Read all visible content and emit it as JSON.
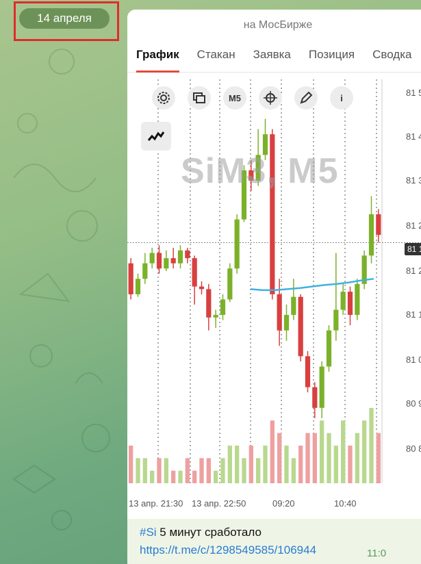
{
  "date_pill": "14 апреля",
  "screenshot": {
    "subtitle": "на МосБирже",
    "tabs": [
      "График",
      "Стакан",
      "Заявка",
      "Позиция",
      "Сводка"
    ],
    "active_tab": 0,
    "tools": {
      "timeframe": "M5",
      "info": "i"
    },
    "watermark": "SiM3, M5",
    "x_labels": [
      "13 апр. 21:30",
      "13 апр. 22:50",
      "09:20",
      "10:40"
    ],
    "y_labels": [
      "81 5",
      "81 4",
      "81 3",
      "81 2",
      "81 2",
      "81 1",
      "81 0",
      "80 9",
      "80 8"
    ],
    "price_tag": "81 1"
  },
  "message": {
    "hashtag": "#Si",
    "text": " 5 минут сработало",
    "link": "https://t.me/c/1298549585/106944",
    "time": "11:0"
  },
  "chart_data": {
    "type": "candlestick",
    "title": "SiM3, M5",
    "x_ticks": [
      "13 апр. 21:30",
      "13 апр. 22:50",
      "09:20",
      "10:40"
    ],
    "candles": [
      {
        "o": 81160,
        "c": 81100,
        "h": 81170,
        "l": 81090
      },
      {
        "o": 81100,
        "c": 81130,
        "h": 81140,
        "l": 81095
      },
      {
        "o": 81130,
        "c": 81160,
        "h": 81180,
        "l": 81120
      },
      {
        "o": 81160,
        "c": 81180,
        "h": 81190,
        "l": 81150
      },
      {
        "o": 81180,
        "c": 81150,
        "h": 81195,
        "l": 81140
      },
      {
        "o": 81150,
        "c": 81170,
        "h": 81185,
        "l": 81145
      },
      {
        "o": 81170,
        "c": 81160,
        "h": 81190,
        "l": 81150
      },
      {
        "o": 81160,
        "c": 81185,
        "h": 81195,
        "l": 81150
      },
      {
        "o": 81185,
        "c": 81170,
        "h": 81190,
        "l": 81160
      },
      {
        "o": 81170,
        "c": 81115,
        "h": 81175,
        "l": 81080
      },
      {
        "o": 81115,
        "c": 81110,
        "h": 81125,
        "l": 81100
      },
      {
        "o": 81110,
        "c": 81055,
        "h": 81120,
        "l": 81030
      },
      {
        "o": 81055,
        "c": 81060,
        "h": 81070,
        "l": 81035
      },
      {
        "o": 81060,
        "c": 81090,
        "h": 81100,
        "l": 81050
      },
      {
        "o": 81090,
        "c": 81150,
        "h": 81160,
        "l": 81085
      },
      {
        "o": 81150,
        "c": 81245,
        "h": 81255,
        "l": 81140
      },
      {
        "o": 81245,
        "c": 81340,
        "h": 81350,
        "l": 81240
      },
      {
        "o": 81340,
        "c": 81320,
        "h": 81360,
        "l": 81300
      },
      {
        "o": 81320,
        "c": 81370,
        "h": 81420,
        "l": 81310
      },
      {
        "o": 81370,
        "c": 81410,
        "h": 81440,
        "l": 81360
      },
      {
        "o": 81410,
        "c": 81100,
        "h": 81420,
        "l": 81090
      },
      {
        "o": 81100,
        "c": 81030,
        "h": 81130,
        "l": 81000
      },
      {
        "o": 81030,
        "c": 81060,
        "h": 81080,
        "l": 81010
      },
      {
        "o": 81060,
        "c": 81095,
        "h": 81130,
        "l": 81050
      },
      {
        "o": 81095,
        "c": 80980,
        "h": 81100,
        "l": 80970
      },
      {
        "o": 80980,
        "c": 80920,
        "h": 80990,
        "l": 80910
      },
      {
        "o": 80920,
        "c": 80880,
        "h": 80930,
        "l": 80860
      },
      {
        "o": 80880,
        "c": 80960,
        "h": 80970,
        "l": 80860
      },
      {
        "o": 80960,
        "c": 81030,
        "h": 81040,
        "l": 80950
      },
      {
        "o": 81030,
        "c": 81070,
        "h": 81180,
        "l": 81010
      },
      {
        "o": 81070,
        "c": 81105,
        "h": 81120,
        "l": 81060
      },
      {
        "o": 81105,
        "c": 81060,
        "h": 81115,
        "l": 81040
      },
      {
        "o": 81060,
        "c": 81120,
        "h": 81130,
        "l": 81050
      },
      {
        "o": 81120,
        "c": 81175,
        "h": 81185,
        "l": 81110
      },
      {
        "o": 81175,
        "c": 81255,
        "h": 81290,
        "l": 81160
      },
      {
        "o": 81255,
        "c": 81215,
        "h": 81265,
        "l": 81200
      }
    ],
    "moving_average": [
      81110,
      81108,
      81108,
      81110,
      81112,
      81115,
      81118,
      81120,
      81123,
      81127,
      81130
    ],
    "volumes": [
      3,
      2,
      2,
      1,
      2,
      2,
      1,
      1,
      2,
      1,
      2,
      2,
      1,
      2,
      3,
      3,
      2,
      3,
      2,
      3,
      5,
      4,
      3,
      2,
      3,
      4,
      4,
      5,
      4,
      3,
      5,
      3,
      4,
      5,
      6,
      4
    ],
    "colors": {
      "up": "#7bb12a",
      "down": "#d84040",
      "ma": "#3fb1e0"
    }
  }
}
